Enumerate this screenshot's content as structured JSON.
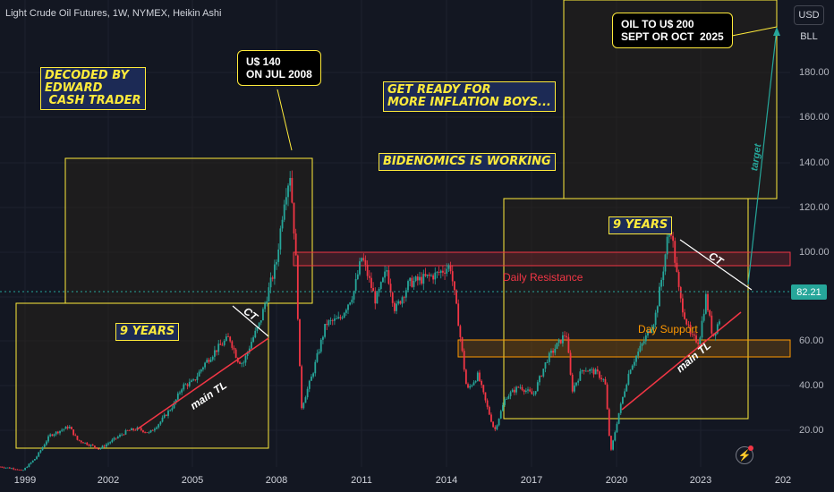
{
  "header": {
    "title": "Light Crude Oil Futures, 1W, NYMEX, Heikin Ashi"
  },
  "units": {
    "currency": "USD",
    "unit": "BLL"
  },
  "last_price": "82.21",
  "colors": {
    "bull": "#26a69a",
    "bear": "#f23645",
    "yellow": "#ffeb3b",
    "resistance": "#f23645",
    "support": "#ff9800",
    "last_price": "#26a69a"
  },
  "annotations": {
    "decoded": "DECODED BY\nEDWARD\n CASH TRADER",
    "callout_2008": "U$ 140\nON JUL 2008",
    "inflation": "GET READY FOR\nMORE INFLATION BOYS...",
    "bidenomics": "BIDENOMICS IS WORKING",
    "target_callout": "OIL TO U$ 200\nSEPT OR OCT  2025",
    "nine_years_left": "9 YEARS",
    "nine_years_right": "9 YEARS",
    "ct_left": "CT",
    "ct_right": "CT",
    "main_tl_left": "main TL",
    "main_tl_right": "main TL",
    "daily_resistance": "Daily Resistance",
    "day_support": "Day Support",
    "target": "target"
  },
  "chart_data": {
    "type": "line",
    "title": "Light Crude Oil Futures, 1W, NYMEX, Heikin Ashi",
    "xlabel": "",
    "ylabel": "",
    "x_ticks": [
      "1999",
      "2002",
      "2005",
      "2008",
      "2011",
      "2014",
      "2017",
      "2020",
      "2023",
      "202"
    ],
    "y_ticks": [
      "180.00",
      "160.00",
      "140.00",
      "120.00",
      "100.00",
      "80.00",
      "60.00",
      "40.00",
      "20.00"
    ],
    "ylim": [
      10,
      215
    ],
    "xlim": [
      1998.2,
      2026.8
    ],
    "grid": true,
    "series": [
      {
        "x": [
          1998.2,
          1998.8,
          1999.0,
          1999.5,
          2000.0,
          2000.7,
          2001.0,
          2001.8,
          2002.3,
          2002.8,
          2003.2,
          2003.6,
          2004.0,
          2004.5,
          2004.8,
          2005.2,
          2005.6,
          2006.0,
          2006.5,
          2006.8,
          2007.0,
          2007.3,
          2007.6,
          2007.9,
          2008.2,
          2008.5,
          2008.7,
          2008.9,
          2009.1,
          2009.5,
          2010.0,
          2010.5,
          2011.0,
          2011.3,
          2011.8,
          2012.2,
          2012.5,
          2013.0,
          2013.5,
          2014.0,
          2014.5,
          2014.8,
          2015.1,
          2015.5,
          2015.8,
          2016.1,
          2016.5,
          2017.0,
          2017.5,
          2018.0,
          2018.7,
          2018.9,
          2019.3,
          2019.8,
          2020.1,
          2020.3,
          2020.6,
          2021.0,
          2021.5,
          2021.9,
          2022.2,
          2022.45,
          2022.8,
          2023.2,
          2023.5,
          2023.75,
          2024.0,
          2024.3
        ],
        "values": [
          14,
          13,
          12,
          18,
          28,
          32,
          26,
          22,
          26,
          30,
          31,
          29,
          34,
          42,
          50,
          52,
          60,
          66,
          72,
          62,
          60,
          70,
          78,
          92,
          105,
          135,
          145,
          110,
          40,
          55,
          78,
          80,
          92,
          108,
          88,
          102,
          84,
          96,
          98,
          100,
          104,
          78,
          48,
          55,
          42,
          30,
          45,
          50,
          46,
          62,
          74,
          48,
          58,
          56,
          52,
          20,
          38,
          58,
          70,
          80,
          102,
          124,
          90,
          72,
          70,
          90,
          72,
          82
        ]
      }
    ]
  }
}
